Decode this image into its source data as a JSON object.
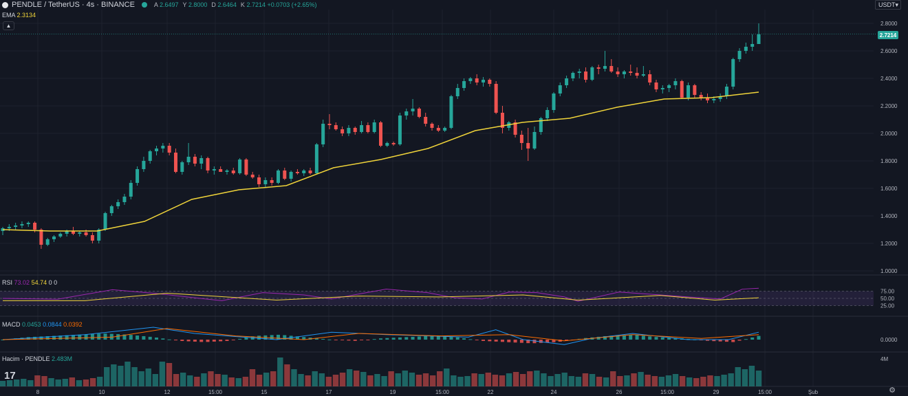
{
  "header": {
    "symbol": "PENDLE / TetherUS · 4s · BINANCE",
    "ohlc": {
      "a_label": "A",
      "a": "2.6497",
      "y_label": "Y",
      "y": "2.8000",
      "d_label": "D",
      "d": "2.6464",
      "k_label": "K",
      "k": "2.7214",
      "change": "+0.0703 (+2.65%)"
    },
    "currency_button": "USDT"
  },
  "ema_legend": {
    "label": "EMA",
    "value": "2.3134"
  },
  "rsi_legend": {
    "label": "RSI",
    "value1": "73.02",
    "value2": "54.74",
    "value3": "0",
    "value4": "0"
  },
  "macd_legend": {
    "label": "MACD",
    "value1": "0.0453",
    "value2": "0.0844",
    "value3": "0.0392"
  },
  "volume_legend": {
    "label": "Hacim · PENDLE",
    "value": "2.483M"
  },
  "price_axis": [
    "2.8000",
    "2.6000",
    "2.4000",
    "2.2000",
    "2.0000",
    "1.8000",
    "1.6000",
    "1.4000",
    "1.2000",
    "1.0000"
  ],
  "current_price": "2.7214",
  "rsi_axis": [
    "75.00",
    "50.00",
    "25.00"
  ],
  "macd_axis": [
    "0.0000"
  ],
  "volume_axis": [
    "4M"
  ],
  "time_axis": [
    "8",
    "10",
    "12",
    "15:00",
    "15",
    "17",
    "19",
    "15:00",
    "22",
    "24",
    "26",
    "15:00",
    "29",
    "15:00",
    "Şub"
  ],
  "colors": {
    "up": "#26a69a",
    "down": "#ef5350",
    "ema": "#f0d43a",
    "rsi": "#9c27b0",
    "rsi_ma": "#f0d43a",
    "macd": "#2196f3",
    "signal": "#ff6d00",
    "bg": "#131722",
    "grid": "#1e222d",
    "text": "#b2b5be"
  },
  "chart_data": {
    "type": "candlestick",
    "title": "PENDLE / TetherUS · 4s · BINANCE",
    "ylim": [
      1.0,
      2.8
    ],
    "candles": [
      [
        1.29,
        1.32,
        1.26,
        1.31
      ],
      [
        1.31,
        1.34,
        1.29,
        1.32
      ],
      [
        1.32,
        1.35,
        1.3,
        1.33
      ],
      [
        1.33,
        1.36,
        1.31,
        1.34
      ],
      [
        1.34,
        1.36,
        1.32,
        1.35
      ],
      [
        1.35,
        1.36,
        1.28,
        1.3
      ],
      [
        1.3,
        1.31,
        1.16,
        1.19
      ],
      [
        1.19,
        1.24,
        1.18,
        1.23
      ],
      [
        1.23,
        1.26,
        1.21,
        1.25
      ],
      [
        1.25,
        1.28,
        1.24,
        1.27
      ],
      [
        1.27,
        1.3,
        1.25,
        1.29
      ],
      [
        1.29,
        1.32,
        1.26,
        1.27
      ],
      [
        1.27,
        1.29,
        1.25,
        1.28
      ],
      [
        1.28,
        1.3,
        1.25,
        1.26
      ],
      [
        1.26,
        1.28,
        1.2,
        1.22
      ],
      [
        1.22,
        1.31,
        1.2,
        1.3
      ],
      [
        1.3,
        1.43,
        1.29,
        1.42
      ],
      [
        1.42,
        1.48,
        1.4,
        1.47
      ],
      [
        1.47,
        1.52,
        1.45,
        1.5
      ],
      [
        1.5,
        1.56,
        1.48,
        1.54
      ],
      [
        1.54,
        1.66,
        1.52,
        1.64
      ],
      [
        1.64,
        1.76,
        1.62,
        1.74
      ],
      [
        1.74,
        1.83,
        1.72,
        1.8
      ],
      [
        1.8,
        1.88,
        1.78,
        1.87
      ],
      [
        1.87,
        1.91,
        1.84,
        1.89
      ],
      [
        1.89,
        1.93,
        1.86,
        1.91
      ],
      [
        1.91,
        1.93,
        1.84,
        1.86
      ],
      [
        1.86,
        1.89,
        1.71,
        1.72
      ],
      [
        1.72,
        1.8,
        1.7,
        1.79
      ],
      [
        1.79,
        1.93,
        1.77,
        1.83
      ],
      [
        1.83,
        1.85,
        1.76,
        1.78
      ],
      [
        1.78,
        1.84,
        1.74,
        1.82
      ],
      [
        1.82,
        1.83,
        1.71,
        1.73
      ],
      [
        1.73,
        1.76,
        1.7,
        1.74
      ],
      [
        1.74,
        1.76,
        1.72,
        1.72
      ],
      [
        1.72,
        1.74,
        1.7,
        1.73
      ],
      [
        1.73,
        1.75,
        1.7,
        1.71
      ],
      [
        1.71,
        1.82,
        1.7,
        1.81
      ],
      [
        1.81,
        1.82,
        1.69,
        1.7
      ],
      [
        1.7,
        1.72,
        1.67,
        1.68
      ],
      [
        1.68,
        1.7,
        1.61,
        1.63
      ],
      [
        1.63,
        1.68,
        1.61,
        1.66
      ],
      [
        1.66,
        1.68,
        1.62,
        1.64
      ],
      [
        1.64,
        1.74,
        1.63,
        1.73
      ],
      [
        1.73,
        1.75,
        1.66,
        1.67
      ],
      [
        1.67,
        1.73,
        1.65,
        1.72
      ],
      [
        1.72,
        1.74,
        1.7,
        1.71
      ],
      [
        1.71,
        1.74,
        1.69,
        1.73
      ],
      [
        1.73,
        1.75,
        1.7,
        1.71
      ],
      [
        1.71,
        1.93,
        1.7,
        1.92
      ],
      [
        1.92,
        2.1,
        1.9,
        2.07
      ],
      [
        2.07,
        2.14,
        2.03,
        2.06
      ],
      [
        2.06,
        2.08,
        2.02,
        2.03
      ],
      [
        2.03,
        2.05,
        1.98,
        2.0
      ],
      [
        2.0,
        2.06,
        1.98,
        2.04
      ],
      [
        2.04,
        2.05,
        1.99,
        2.01
      ],
      [
        2.01,
        2.09,
        2.0,
        2.06
      ],
      [
        2.06,
        2.08,
        2.0,
        2.01
      ],
      [
        2.01,
        2.1,
        2.0,
        2.08
      ],
      [
        2.08,
        2.09,
        1.9,
        1.91
      ],
      [
        1.91,
        1.94,
        1.9,
        1.93
      ],
      [
        1.93,
        1.94,
        1.91,
        1.92
      ],
      [
        1.92,
        2.15,
        1.91,
        2.13
      ],
      [
        2.13,
        2.18,
        2.1,
        2.16
      ],
      [
        2.16,
        2.25,
        2.13,
        2.18
      ],
      [
        2.18,
        2.19,
        2.11,
        2.12
      ],
      [
        2.12,
        2.15,
        2.05,
        2.07
      ],
      [
        2.07,
        2.08,
        2.02,
        2.04
      ],
      [
        2.04,
        2.06,
        2.01,
        2.02
      ],
      [
        2.02,
        2.05,
        2.01,
        2.04
      ],
      [
        2.04,
        2.28,
        2.03,
        2.27
      ],
      [
        2.27,
        2.36,
        2.25,
        2.33
      ],
      [
        2.33,
        2.4,
        2.31,
        2.38
      ],
      [
        2.38,
        2.41,
        2.36,
        2.4
      ],
      [
        2.4,
        2.43,
        2.35,
        2.37
      ],
      [
        2.37,
        2.41,
        2.34,
        2.39
      ],
      [
        2.39,
        2.4,
        2.34,
        2.36
      ],
      [
        2.36,
        2.38,
        2.14,
        2.15
      ],
      [
        2.15,
        2.2,
        2.0,
        2.04
      ],
      [
        2.04,
        2.09,
        2.02,
        2.08
      ],
      [
        2.08,
        2.1,
        1.97,
        1.99
      ],
      [
        1.99,
        2.02,
        1.88,
        1.93
      ],
      [
        1.93,
        2.04,
        1.8,
        1.89
      ],
      [
        1.89,
        2.05,
        1.88,
        2.01
      ],
      [
        2.01,
        2.12,
        1.99,
        2.11
      ],
      [
        2.11,
        2.19,
        2.09,
        2.17
      ],
      [
        2.17,
        2.3,
        2.15,
        2.29
      ],
      [
        2.29,
        2.37,
        2.27,
        2.35
      ],
      [
        2.35,
        2.42,
        2.33,
        2.4
      ],
      [
        2.4,
        2.45,
        2.38,
        2.44
      ],
      [
        2.44,
        2.47,
        2.4,
        2.45
      ],
      [
        2.45,
        2.48,
        2.37,
        2.39
      ],
      [
        2.39,
        2.49,
        2.38,
        2.48
      ],
      [
        2.48,
        2.5,
        2.43,
        2.47
      ],
      [
        2.47,
        2.6,
        2.45,
        2.49
      ],
      [
        2.49,
        2.54,
        2.44,
        2.45
      ],
      [
        2.45,
        2.48,
        2.41,
        2.43
      ],
      [
        2.43,
        2.46,
        2.4,
        2.45
      ],
      [
        2.45,
        2.5,
        2.42,
        2.44
      ],
      [
        2.44,
        2.48,
        2.4,
        2.42
      ],
      [
        2.42,
        2.49,
        2.41,
        2.43
      ],
      [
        2.43,
        2.46,
        2.35,
        2.37
      ],
      [
        2.37,
        2.39,
        2.3,
        2.32
      ],
      [
        2.32,
        2.35,
        2.29,
        2.33
      ],
      [
        2.33,
        2.36,
        2.3,
        2.35
      ],
      [
        2.35,
        2.4,
        2.32,
        2.38
      ],
      [
        2.38,
        2.39,
        2.25,
        2.26
      ],
      [
        2.26,
        2.37,
        2.24,
        2.35
      ],
      [
        2.35,
        2.36,
        2.26,
        2.28
      ],
      [
        2.28,
        2.3,
        2.24,
        2.26
      ],
      [
        2.26,
        2.29,
        2.22,
        2.24
      ],
      [
        2.24,
        2.27,
        2.22,
        2.25
      ],
      [
        2.25,
        2.29,
        2.23,
        2.27
      ],
      [
        2.27,
        2.36,
        2.25,
        2.34
      ],
      [
        2.34,
        2.55,
        2.32,
        2.54
      ],
      [
        2.54,
        2.62,
        2.52,
        2.6
      ],
      [
        2.6,
        2.66,
        2.58,
        2.63
      ],
      [
        2.63,
        2.72,
        2.6,
        2.65
      ],
      [
        2.65,
        2.8,
        2.65,
        2.72
      ]
    ],
    "ema": [
      [
        0,
        1.3
      ],
      [
        10,
        1.29
      ],
      [
        20,
        1.29
      ],
      [
        30,
        1.36
      ],
      [
        40,
        1.52
      ],
      [
        50,
        1.59
      ],
      [
        60,
        1.62
      ],
      [
        70,
        1.75
      ],
      [
        80,
        1.81
      ],
      [
        90,
        1.89
      ],
      [
        100,
        2.02
      ],
      [
        110,
        2.08
      ],
      [
        120,
        2.11
      ],
      [
        130,
        2.19
      ],
      [
        140,
        2.25
      ],
      [
        150,
        2.26
      ],
      [
        160,
        2.3
      ]
    ],
    "rsi": [
      [
        0,
        0.5
      ],
      [
        20,
        0.47
      ],
      [
        40,
        0.8
      ],
      [
        50,
        0.72
      ],
      [
        60,
        0.63
      ],
      [
        70,
        0.52
      ],
      [
        80,
        0.42
      ],
      [
        95,
        0.7
      ],
      [
        110,
        0.62
      ],
      [
        120,
        0.48
      ],
      [
        140,
        0.82
      ],
      [
        155,
        0.7
      ],
      [
        165,
        0.52
      ],
      [
        175,
        0.48
      ],
      [
        185,
        0.72
      ],
      [
        195,
        0.7
      ],
      [
        205,
        0.55
      ],
      [
        210,
        0.4
      ],
      [
        225,
        0.72
      ],
      [
        240,
        0.62
      ],
      [
        250,
        0.55
      ],
      [
        262,
        0.48
      ],
      [
        270,
        0.82
      ],
      [
        276,
        0.85
      ]
    ],
    "rsi_ma": [
      [
        0,
        0.42
      ],
      [
        30,
        0.42
      ],
      [
        60,
        0.68
      ],
      [
        80,
        0.56
      ],
      [
        100,
        0.44
      ],
      [
        130,
        0.58
      ],
      [
        160,
        0.55
      ],
      [
        190,
        0.62
      ],
      [
        210,
        0.44
      ],
      [
        240,
        0.6
      ],
      [
        260,
        0.44
      ],
      [
        276,
        0.52
      ]
    ],
    "macd": [
      [
        0,
        0.0
      ],
      [
        30,
        0.04
      ],
      [
        55,
        0.1
      ],
      [
        70,
        0.05
      ],
      [
        100,
        0.0
      ],
      [
        120,
        0.06
      ],
      [
        140,
        0.04
      ],
      [
        170,
        0.02
      ],
      [
        180,
        0.08
      ],
      [
        190,
        0.0
      ],
      [
        205,
        -0.04
      ],
      [
        215,
        0.01
      ],
      [
        230,
        0.05
      ],
      [
        250,
        0.0
      ],
      [
        265,
        0.0
      ],
      [
        276,
        0.06
      ]
    ],
    "macd_signal": [
      [
        0,
        0.0
      ],
      [
        40,
        0.02
      ],
      [
        60,
        0.09
      ],
      [
        85,
        0.03
      ],
      [
        110,
        0.0
      ],
      [
        130,
        0.05
      ],
      [
        160,
        0.03
      ],
      [
        185,
        0.04
      ],
      [
        205,
        -0.01
      ],
      [
        230,
        0.04
      ],
      [
        255,
        0.01
      ],
      [
        276,
        0.04
      ]
    ],
    "macd_hist": [
      0.0,
      0.02,
      0.03,
      0.04,
      0.05,
      0.04,
      0.02,
      -0.01,
      -0.02,
      -0.01,
      0.03,
      0.04,
      0.02,
      0.0,
      -0.01,
      0.01,
      0.02,
      0.03,
      0.02,
      -0.01,
      -0.02,
      -0.03,
      -0.02,
      0.01,
      0.03,
      0.04,
      0.02,
      0.01,
      -0.01,
      -0.02,
      0.03
    ],
    "volume": [
      0.8,
      0.9,
      1.0,
      1.1,
      0.9,
      1.6,
      1.5,
      1.2,
      1.0,
      1.1,
      1.3,
      0.9,
      1.0,
      1.2,
      1.4,
      2.8,
      3.2,
      3.0,
      3.6,
      2.8,
      2.2,
      2.6,
      1.8,
      3.6,
      3.4,
      1.8,
      2.0,
      1.6,
      1.4,
      1.9,
      2.2,
      1.8,
      1.7,
      1.3,
      1.2,
      1.4,
      2.5,
      1.7,
      2.0,
      2.2,
      4.2,
      3.2,
      2.5,
      1.8,
      1.6,
      2.2,
      1.9,
      1.4,
      1.7,
      2.0,
      2.5,
      2.3,
      2.1,
      1.6,
      1.8,
      1.5,
      2.2,
      1.9,
      2.3,
      2.0,
      1.7,
      1.9,
      1.6,
      2.2,
      2.6,
      1.6,
      1.4,
      1.5,
      1.9,
      1.8,
      2.0,
      1.7,
      1.6,
      1.9,
      2.1,
      1.8,
      2.2,
      2.3,
      1.9,
      1.5,
      1.8,
      2.0,
      1.5,
      1.4,
      1.9,
      1.8,
      1.4,
      1.3,
      2.2,
      1.5,
      1.6,
      1.9,
      2.1,
      1.7,
      1.5,
      1.4,
      1.6,
      1.8,
      1.5,
      1.3,
      1.2,
      1.4,
      1.6,
      1.5,
      1.7,
      1.9,
      2.8,
      2.5,
      3.0,
      2.3
    ],
    "xlabel": "",
    "ylabel": ""
  }
}
